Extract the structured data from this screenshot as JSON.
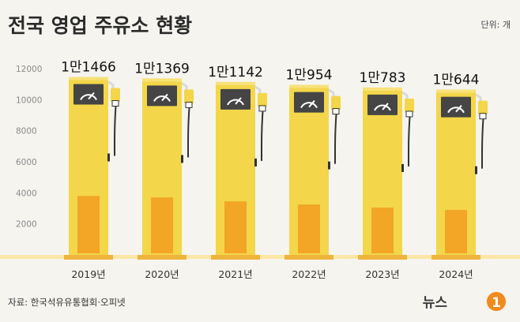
{
  "title": "전국 영업 주유소 현황",
  "unit_label": "단위: 개",
  "source": "자료: 한국석유유통협회·오피넷",
  "brand": "뉴스1",
  "colors": {
    "background": "#f5f4ef",
    "pump_body": "#f3d64a",
    "pump_base": "#eeb53c",
    "pump_fill": "#f3a525",
    "gauge": "#454545",
    "nozzle": "#f3d64a",
    "hose": "#333333",
    "brand_accent": "#f08a1c"
  },
  "chart_data": {
    "type": "bar",
    "categories": [
      "2019년",
      "2020년",
      "2021년",
      "2022년",
      "2023년",
      "2024년"
    ],
    "values": [
      11466,
      11369,
      11142,
      10954,
      10783,
      10644
    ],
    "value_labels": [
      "1만1466",
      "1만1369",
      "1만1142",
      "1만954",
      "1만783",
      "1만644"
    ],
    "inner_fill_values": [
      3800,
      3700,
      3450,
      3250,
      3050,
      2900
    ],
    "ylim": [
      0,
      12000
    ],
    "yticks": [
      2000,
      4000,
      6000,
      8000,
      10000,
      12000
    ],
    "ytick_labels": [
      "2000",
      "4000",
      "6000",
      "8000",
      "10000",
      "12000"
    ],
    "grid": false,
    "legend": "none"
  }
}
